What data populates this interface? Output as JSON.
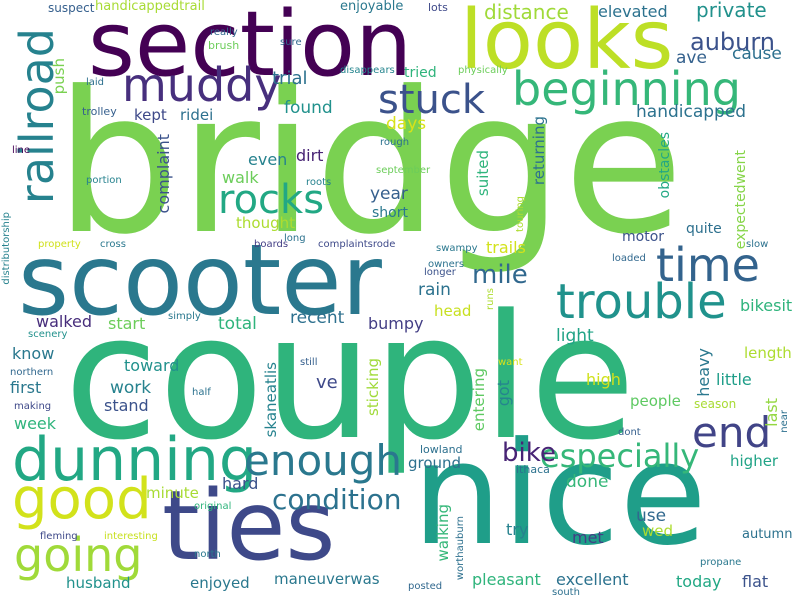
{
  "words": [
    {
      "text": "bridge",
      "color": "#7ad151"
    },
    {
      "text": "couple",
      "color": "#2fb47c"
    },
    {
      "text": "nice",
      "color": "#1f9e89"
    },
    {
      "text": "scooter",
      "color": "#2a788e"
    },
    {
      "text": "section",
      "color": "#440154"
    },
    {
      "text": "looks",
      "color": "#bddf26"
    },
    {
      "text": "ties",
      "color": "#3e4989"
    },
    {
      "text": "dunning",
      "color": "#22a884"
    },
    {
      "text": "trouble",
      "color": "#20928c"
    },
    {
      "text": "beginning",
      "color": "#35b779"
    },
    {
      "text": "muddy",
      "color": "#472f7d"
    },
    {
      "text": "time",
      "color": "#33638d"
    },
    {
      "text": "good",
      "color": "#d2e21b"
    },
    {
      "text": "railroad",
      "color": "#26828e"
    },
    {
      "text": "going",
      "color": "#a0da39"
    },
    {
      "text": "enough",
      "color": "#2a788e"
    },
    {
      "text": "stuck",
      "color": "#3b528b"
    },
    {
      "text": "rocks",
      "color": "#22a884"
    },
    {
      "text": "end",
      "color": "#414487"
    },
    {
      "text": "especially",
      "color": "#35b779"
    },
    {
      "text": "condition",
      "color": "#2c728e"
    },
    {
      "text": "mile",
      "color": "#31688e"
    },
    {
      "text": "bike",
      "color": "#482475"
    },
    {
      "text": "auburn",
      "color": "#3b528b"
    },
    {
      "text": "distance",
      "color": "#a0da39"
    },
    {
      "text": "private",
      "color": "#21918c"
    },
    {
      "text": "elevated",
      "color": "#2c728e"
    },
    {
      "text": "cause",
      "color": "#2d708e"
    },
    {
      "text": "ave",
      "color": "#34618d"
    },
    {
      "text": "handicapped",
      "color": "#2c728e"
    },
    {
      "text": "handicappedtrail",
      "color": "#a8db34"
    },
    {
      "text": "suspect",
      "color": "#355f8d"
    },
    {
      "text": "enjoyable",
      "color": "#2a788e"
    },
    {
      "text": "lots",
      "color": "#3e4989"
    },
    {
      "text": "push",
      "color": "#7ad151"
    },
    {
      "text": "trial",
      "color": "#2c728e"
    },
    {
      "text": "tried",
      "color": "#2fb47c"
    },
    {
      "text": "physically",
      "color": "#6ccd5a"
    },
    {
      "text": "found",
      "color": "#21918c"
    },
    {
      "text": "kept",
      "color": "#3e4989"
    },
    {
      "text": "ridei",
      "color": "#2d708e"
    },
    {
      "text": "days",
      "color": "#d8e219"
    },
    {
      "text": "laid",
      "color": "#2d708e"
    },
    {
      "text": "trolley",
      "color": "#355f8d"
    },
    {
      "text": "brush",
      "color": "#6ccd5a"
    },
    {
      "text": "really",
      "color": "#31688e"
    },
    {
      "text": "sure",
      "color": "#31688e"
    },
    {
      "text": "disappears",
      "color": "#25858e"
    },
    {
      "text": "even",
      "color": "#26828e"
    },
    {
      "text": "dirt",
      "color": "#482475"
    },
    {
      "text": "walk",
      "color": "#6ccd5a"
    },
    {
      "text": "complaint",
      "color": "#3b528b"
    },
    {
      "text": "thought",
      "color": "#addc30"
    },
    {
      "text": "year",
      "color": "#355f8d"
    },
    {
      "text": "short",
      "color": "#2a788e"
    },
    {
      "text": "suited",
      "color": "#2fb47c"
    },
    {
      "text": "returning",
      "color": "#2c728e"
    },
    {
      "text": "obstacles",
      "color": "#22a884"
    },
    {
      "text": "expectedwent",
      "color": "#86d549"
    },
    {
      "text": "quite",
      "color": "#2d708e"
    },
    {
      "text": "motor",
      "color": "#3b528b"
    },
    {
      "text": "trails",
      "color": "#d2e21b"
    },
    {
      "text": "rain",
      "color": "#2c728e"
    },
    {
      "text": "head",
      "color": "#c8e020"
    },
    {
      "text": "recent",
      "color": "#2d708e"
    },
    {
      "text": "total",
      "color": "#2fb47c"
    },
    {
      "text": "start",
      "color": "#6ccd5a"
    },
    {
      "text": "walked",
      "color": "#472d7b"
    },
    {
      "text": "bumpy",
      "color": "#433e85"
    },
    {
      "text": "bikesit",
      "color": "#2fb47c"
    },
    {
      "text": "light",
      "color": "#20a386"
    },
    {
      "text": "length",
      "color": "#addc30"
    },
    {
      "text": "heavy",
      "color": "#2a788e"
    },
    {
      "text": "little",
      "color": "#1f9e89"
    },
    {
      "text": "last",
      "color": "#93d741"
    },
    {
      "text": "high",
      "color": "#d0e11c"
    },
    {
      "text": "people",
      "color": "#5ec962"
    },
    {
      "text": "season",
      "color": "#a8db34"
    },
    {
      "text": "know",
      "color": "#2a788e"
    },
    {
      "text": "toward",
      "color": "#21918c"
    },
    {
      "text": "first",
      "color": "#2a788e"
    },
    {
      "text": "work",
      "color": "#26828e"
    },
    {
      "text": "stand",
      "color": "#3b528b"
    },
    {
      "text": "ve",
      "color": "#3e4989"
    },
    {
      "text": "got",
      "color": "#25858e"
    },
    {
      "text": "entering",
      "color": "#5ec962"
    },
    {
      "text": "sticking",
      "color": "#a0da39"
    },
    {
      "text": "skaneatlis",
      "color": "#26828e"
    },
    {
      "text": "week",
      "color": "#2fb47c"
    },
    {
      "text": "northern",
      "color": "#31688e"
    },
    {
      "text": "making",
      "color": "#3e4989"
    },
    {
      "text": "scenery",
      "color": "#21918c"
    },
    {
      "text": "simply",
      "color": "#2a788e"
    },
    {
      "text": "still",
      "color": "#355f8d"
    },
    {
      "text": "want",
      "color": "#d8e219"
    },
    {
      "text": "half",
      "color": "#2c728e"
    },
    {
      "text": "dont",
      "color": "#355f8d"
    },
    {
      "text": "near",
      "color": "#2d708e"
    },
    {
      "text": "ground",
      "color": "#2d708e"
    },
    {
      "text": "lowland",
      "color": "#2d708e"
    },
    {
      "text": "ithaca",
      "color": "#2c728e"
    },
    {
      "text": "done",
      "color": "#35b779"
    },
    {
      "text": "higher",
      "color": "#20a386"
    },
    {
      "text": "hard",
      "color": "#3b528b"
    },
    {
      "text": "minute",
      "color": "#a8db34"
    },
    {
      "text": "walking",
      "color": "#35b779"
    },
    {
      "text": "use",
      "color": "#31688e"
    },
    {
      "text": "wed",
      "color": "#addc30"
    },
    {
      "text": "try",
      "color": "#26828e"
    },
    {
      "text": "met",
      "color": "#433e85"
    },
    {
      "text": "autumn",
      "color": "#2c728e"
    },
    {
      "text": "husband",
      "color": "#21918c"
    },
    {
      "text": "enjoyed",
      "color": "#2a788e"
    },
    {
      "text": "maneuverwas",
      "color": "#2a788e"
    },
    {
      "text": "pleasant",
      "color": "#2fb47c"
    },
    {
      "text": "excellent",
      "color": "#2c728e"
    },
    {
      "text": "today",
      "color": "#22a884"
    },
    {
      "text": "flat",
      "color": "#3b528b"
    },
    {
      "text": "original",
      "color": "#2fb47c"
    },
    {
      "text": "interesting",
      "color": "#c8e020"
    },
    {
      "text": "fleming",
      "color": "#3e4989"
    },
    {
      "text": "north",
      "color": "#2a788e"
    },
    {
      "text": "worthauburn",
      "color": "#2d708e"
    },
    {
      "text": "posted",
      "color": "#31688e"
    },
    {
      "text": "propane",
      "color": "#2a788e"
    },
    {
      "text": "south",
      "color": "#2d708e"
    },
    {
      "text": "line",
      "color": "#440154"
    },
    {
      "text": "portion",
      "color": "#26828e"
    },
    {
      "text": "roots",
      "color": "#26828e"
    },
    {
      "text": "rough",
      "color": "#2c728e"
    },
    {
      "text": "september",
      "color": "#6ccd5a"
    },
    {
      "text": "touring",
      "color": "#addc30"
    },
    {
      "text": "distributorship",
      "color": "#26828e"
    },
    {
      "text": "property",
      "color": "#d0e11c"
    },
    {
      "text": "cross",
      "color": "#2a788e"
    },
    {
      "text": "boards",
      "color": "#433e85"
    },
    {
      "text": "long",
      "color": "#2c728e"
    },
    {
      "text": "complaintsrode",
      "color": "#3e4989"
    },
    {
      "text": "swampy",
      "color": "#2a788e"
    },
    {
      "text": "owners",
      "color": "#2c728e"
    },
    {
      "text": "longer",
      "color": "#3b528b"
    },
    {
      "text": "runs",
      "color": "#addc30"
    },
    {
      "text": "loaded",
      "color": "#31688e"
    },
    {
      "text": "slow",
      "color": "#2c728e"
    }
  ]
}
